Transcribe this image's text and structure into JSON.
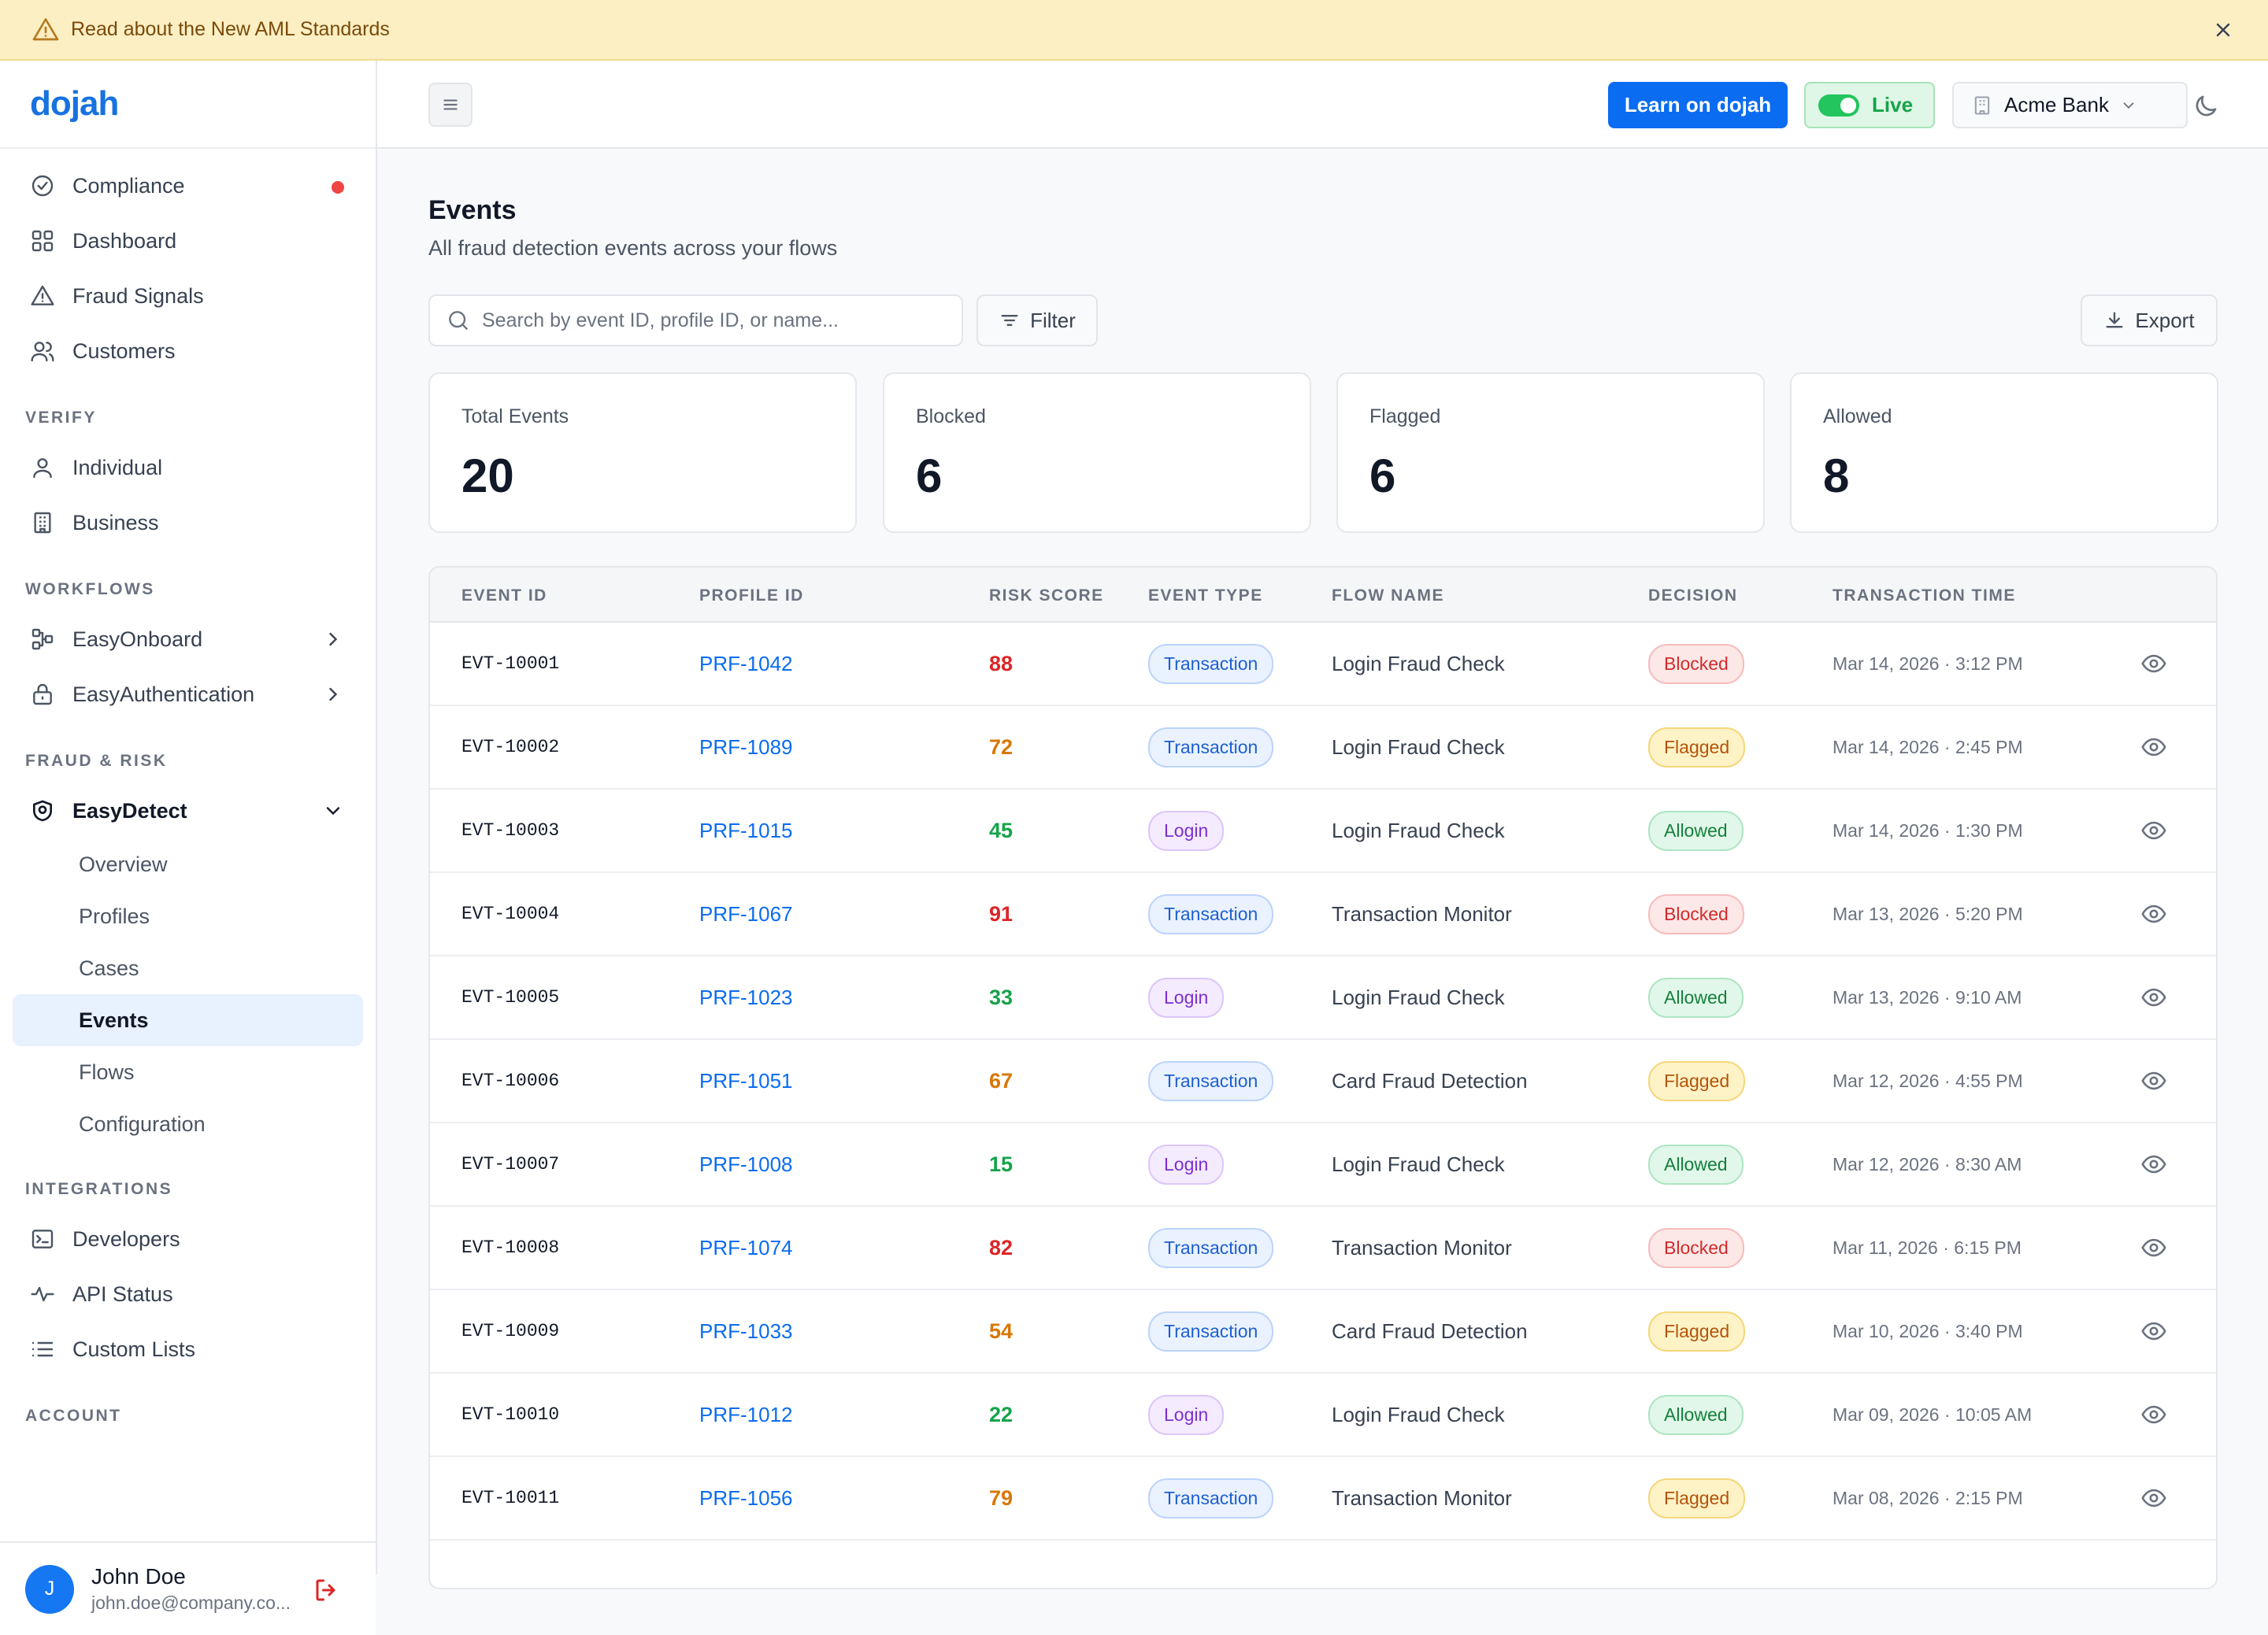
{
  "banner": {
    "text": "Read about the New AML Standards"
  },
  "brand": {
    "logo": "dojah"
  },
  "sidebar": {
    "top_items": [
      {
        "label": "Compliance",
        "icon": "check-circle-icon"
      },
      {
        "label": "Dashboard",
        "icon": "grid-icon"
      },
      {
        "label": "Fraud Signals",
        "icon": "warning-triangle-icon"
      },
      {
        "label": "Customers",
        "icon": "users-icon"
      }
    ],
    "sections": {
      "verify": "VERIFY",
      "workflows": "WORKFLOWS",
      "fraud_risk": "FRAUD & RISK",
      "integrations": "INTEGRATIONS",
      "account": "ACCOUNT"
    },
    "verify_items": [
      {
        "label": "Individual",
        "icon": "user-icon"
      },
      {
        "label": "Business",
        "icon": "building-icon"
      }
    ],
    "workflow_items": [
      {
        "label": "EasyOnboard",
        "icon": "workflow-icon"
      },
      {
        "label": "EasyAuthentication",
        "icon": "lock-icon"
      }
    ],
    "easydetect": {
      "label": "EasyDetect",
      "icon": "shield-icon",
      "children": [
        "Overview",
        "Profiles",
        "Cases",
        "Events",
        "Flows",
        "Configuration"
      ]
    },
    "integration_items": [
      {
        "label": "Developers",
        "icon": "terminal-icon"
      },
      {
        "label": "API Status",
        "icon": "activity-icon"
      },
      {
        "label": "Custom Lists",
        "icon": "list-icon"
      }
    ],
    "user": {
      "initial": "J",
      "name": "John Doe",
      "email": "john.doe@company.co..."
    }
  },
  "topbar": {
    "learn_label": "Learn on dojah",
    "live_label": "Live",
    "org_name": "Acme Bank"
  },
  "page": {
    "title": "Events",
    "subtitle": "All fraud detection events across your flows",
    "search_placeholder": "Search by event ID, profile ID, or name...",
    "filter_label": "Filter",
    "export_label": "Export"
  },
  "stats": [
    {
      "label": "Total Events",
      "value": "20"
    },
    {
      "label": "Blocked",
      "value": "6"
    },
    {
      "label": "Flagged",
      "value": "6"
    },
    {
      "label": "Allowed",
      "value": "8"
    }
  ],
  "table": {
    "headers": [
      "EVENT ID",
      "PROFILE ID",
      "RISK SCORE",
      "EVENT TYPE",
      "FLOW NAME",
      "DECISION",
      "TRANSACTION TIME"
    ],
    "rows": [
      {
        "id": "EVT-10001",
        "profile": "PRF-1042",
        "score": "88",
        "level": "red",
        "type": "Transaction",
        "flow": "Login Fraud Check",
        "decision": "Blocked",
        "time": "Mar 14, 2026 · 3:12 PM"
      },
      {
        "id": "EVT-10002",
        "profile": "PRF-1089",
        "score": "72",
        "level": "orange",
        "type": "Transaction",
        "flow": "Login Fraud Check",
        "decision": "Flagged",
        "time": "Mar 14, 2026 · 2:45 PM"
      },
      {
        "id": "EVT-10003",
        "profile": "PRF-1015",
        "score": "45",
        "level": "green",
        "type": "Login",
        "flow": "Login Fraud Check",
        "decision": "Allowed",
        "time": "Mar 14, 2026 · 1:30 PM"
      },
      {
        "id": "EVT-10004",
        "profile": "PRF-1067",
        "score": "91",
        "level": "red",
        "type": "Transaction",
        "flow": "Transaction Monitor",
        "decision": "Blocked",
        "time": "Mar 13, 2026 · 5:20 PM"
      },
      {
        "id": "EVT-10005",
        "profile": "PRF-1023",
        "score": "33",
        "level": "green",
        "type": "Login",
        "flow": "Login Fraud Check",
        "decision": "Allowed",
        "time": "Mar 13, 2026 · 9:10 AM"
      },
      {
        "id": "EVT-10006",
        "profile": "PRF-1051",
        "score": "67",
        "level": "orange",
        "type": "Transaction",
        "flow": "Card Fraud Detection",
        "decision": "Flagged",
        "time": "Mar 12, 2026 · 4:55 PM"
      },
      {
        "id": "EVT-10007",
        "profile": "PRF-1008",
        "score": "15",
        "level": "green",
        "type": "Login",
        "flow": "Login Fraud Check",
        "decision": "Allowed",
        "time": "Mar 12, 2026 · 8:30 AM"
      },
      {
        "id": "EVT-10008",
        "profile": "PRF-1074",
        "score": "82",
        "level": "red",
        "type": "Transaction",
        "flow": "Transaction Monitor",
        "decision": "Blocked",
        "time": "Mar 11, 2026 · 6:15 PM"
      },
      {
        "id": "EVT-10009",
        "profile": "PRF-1033",
        "score": "54",
        "level": "orange",
        "type": "Transaction",
        "flow": "Card Fraud Detection",
        "decision": "Flagged",
        "time": "Mar 10, 2026 · 3:40 PM"
      },
      {
        "id": "EVT-10010",
        "profile": "PRF-1012",
        "score": "22",
        "level": "green",
        "type": "Login",
        "flow": "Login Fraud Check",
        "decision": "Allowed",
        "time": "Mar 09, 2026 · 10:05 AM"
      },
      {
        "id": "EVT-10011",
        "profile": "PRF-1056",
        "score": "79",
        "level": "orange",
        "type": "Transaction",
        "flow": "Transaction Monitor",
        "decision": "Flagged",
        "time": "Mar 08, 2026 · 2:15 PM"
      }
    ]
  },
  "colors": {
    "accent": "#0a6cf0",
    "live": "#16a34a",
    "danger": "#dc2626",
    "warning": "#d97706",
    "success": "#16a34a"
  }
}
